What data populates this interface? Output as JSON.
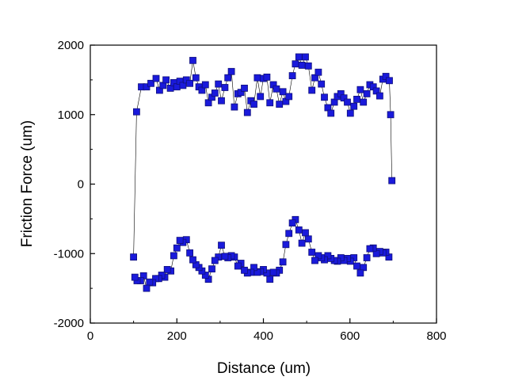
{
  "chart_data": {
    "type": "scatter",
    "title": "",
    "xlabel": "Distance (um)",
    "ylabel": "Friction Force (um)",
    "xlim": [
      0,
      800
    ],
    "ylim": [
      -2000,
      2000
    ],
    "xticks": [
      0,
      200,
      400,
      600,
      800
    ],
    "yticks": [
      -2000,
      -1000,
      0,
      1000,
      2000
    ],
    "grid": false,
    "legend": "none",
    "marker": "square",
    "marker_color": "#1a1adb",
    "line_color": "#000000",
    "series": [
      {
        "x": [
          100,
          107,
          118,
          130,
          140,
          152,
          160,
          168,
          175,
          185,
          193,
          200,
          207,
          214,
          222,
          230,
          237,
          244,
          251,
          258,
          266,
          273,
          281,
          288,
          296,
          303,
          311,
          318,
          326,
          333,
          341,
          348,
          356,
          363,
          371,
          378,
          386,
          393,
          400,
          408,
          415,
          423,
          430,
          437,
          445,
          452,
          459,
          467,
          474,
          482,
          489,
          497,
          504,
          512,
          519,
          527,
          534,
          541,
          549,
          556,
          564,
          571,
          579,
          586,
          594,
          601,
          609,
          616,
          624,
          631,
          639,
          646,
          654,
          661,
          669,
          676,
          683,
          691,
          694,
          697
        ],
        "y": [
          -1050,
          1040,
          1400,
          1400,
          1450,
          1520,
          1350,
          1420,
          1500,
          1380,
          1460,
          1400,
          1480,
          1420,
          1500,
          1450,
          1780,
          1530,
          1400,
          1350,
          1430,
          1170,
          1250,
          1310,
          1440,
          1200,
          1390,
          1530,
          1620,
          1110,
          1300,
          1320,
          1380,
          1030,
          1200,
          1150,
          1530,
          1260,
          1520,
          1540,
          1170,
          1430,
          1370,
          1150,
          1330,
          1190,
          1260,
          1560,
          1730,
          1830,
          1710,
          1830,
          1700,
          1350,
          1530,
          1610,
          1440,
          1250,
          1100,
          1020,
          1180,
          1260,
          1300,
          1240,
          1180,
          1020,
          1120,
          1220,
          1360,
          1180,
          1300,
          1430,
          1400,
          1340,
          1270,
          1510,
          1550,
          1490,
          1000,
          50
        ]
      },
      {
        "x": [
          690,
          683,
          676,
          669,
          661,
          654,
          646,
          639,
          631,
          624,
          616,
          609,
          601,
          594,
          586,
          579,
          571,
          564,
          556,
          549,
          541,
          534,
          527,
          519,
          512,
          504,
          497,
          489,
          482,
          474,
          467,
          459,
          452,
          445,
          437,
          430,
          423,
          415,
          408,
          400,
          393,
          386,
          378,
          371,
          363,
          356,
          348,
          341,
          333,
          326,
          318,
          311,
          303,
          296,
          288,
          281,
          273,
          266,
          258,
          251,
          244,
          237,
          230,
          222,
          214,
          207,
          200,
          193,
          186,
          178,
          172,
          165,
          158,
          151,
          144,
          137,
          130,
          123,
          116,
          108,
          103
        ],
        "y": [
          -1050,
          -980,
          -990,
          -970,
          -1000,
          -920,
          -930,
          -1060,
          -1200,
          -1280,
          -1180,
          -1060,
          -1110,
          -1070,
          -1100,
          -1060,
          -1110,
          -1100,
          -1070,
          -1030,
          -1090,
          -1060,
          -1030,
          -1100,
          -980,
          -790,
          -700,
          -850,
          -660,
          -510,
          -560,
          -710,
          -870,
          -1120,
          -1240,
          -1280,
          -1270,
          -1370,
          -1280,
          -1230,
          -1260,
          -1270,
          -1200,
          -1270,
          -1280,
          -1240,
          -1140,
          -1180,
          -1050,
          -1030,
          -1060,
          -1040,
          -880,
          -1050,
          -1100,
          -1220,
          -1370,
          -1310,
          -1250,
          -1200,
          -1160,
          -1090,
          -990,
          -800,
          -840,
          -810,
          -920,
          -1030,
          -1250,
          -1230,
          -1340,
          -1310,
          -1360,
          -1360,
          -1420,
          -1410,
          -1500,
          -1320,
          -1390,
          -1390,
          -1340
        ]
      }
    ]
  }
}
